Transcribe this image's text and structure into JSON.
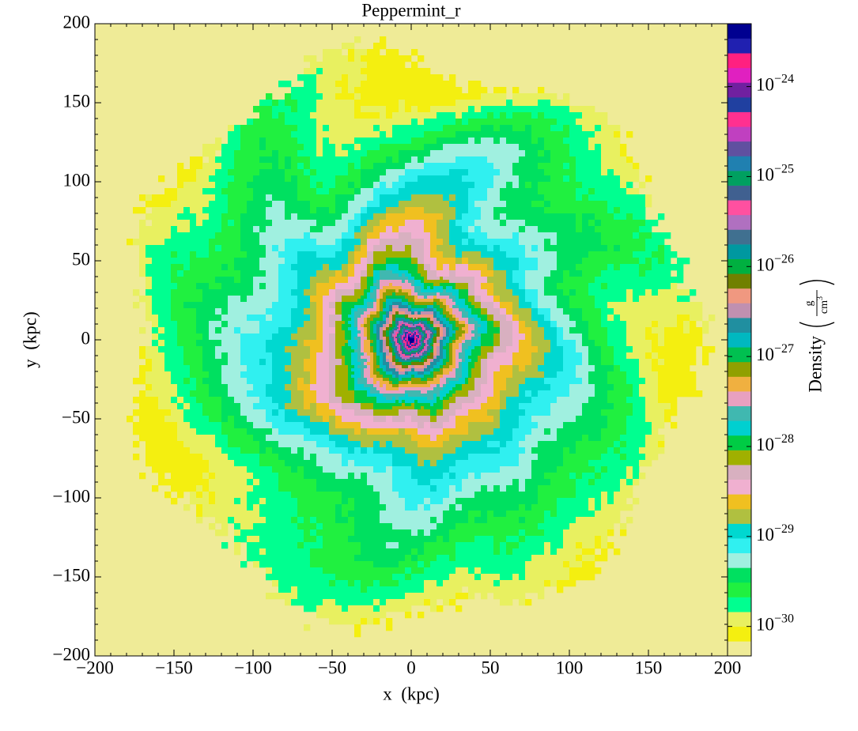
{
  "chart_data": {
    "type": "heatmap",
    "title": "Peppermint_r",
    "xlabel": "x  (kpc)",
    "ylabel": "y  (kpc)",
    "xlim": [
      -200,
      200
    ],
    "ylim": [
      -200,
      200
    ],
    "xticks": [
      {
        "value": -200,
        "label": "−200"
      },
      {
        "value": -150,
        "label": "−150"
      },
      {
        "value": -100,
        "label": "−100"
      },
      {
        "value": -50,
        "label": "−50"
      },
      0,
      50,
      100,
      150,
      200
    ],
    "yticks": [
      {
        "value": -200,
        "label": "−200"
      },
      {
        "value": -150,
        "label": "−150"
      },
      {
        "value": -100,
        "label": "−100"
      },
      {
        "value": -50,
        "label": "−50"
      },
      0,
      50,
      100,
      150,
      200
    ],
    "colorbar": {
      "label": "Density",
      "units": {
        "numerator": "g",
        "denominator": "cm",
        "power": "3"
      },
      "scale": "log",
      "lim": [
        4.7e-31,
        5e-24
      ],
      "ticks": [
        {
          "value": 1e-30,
          "label": "10",
          "exponent": "−30"
        },
        {
          "value": 1e-29,
          "label": "10",
          "exponent": "−29"
        },
        {
          "value": 1e-28,
          "label": "10",
          "exponent": "−28"
        },
        {
          "value": 1e-27,
          "label": "10",
          "exponent": "−27"
        },
        {
          "value": 1e-26,
          "label": "10",
          "exponent": "−26"
        },
        {
          "value": 1e-25,
          "label": "10",
          "exponent": "−25"
        },
        {
          "value": 1e-24,
          "label": "10",
          "exponent": "−24"
        }
      ],
      "colors": [
        "#efeb97",
        "#f4ef10",
        "#e8f060",
        "#00ff90",
        "#20f040",
        "#00e060",
        "#a0f0e0",
        "#30f0f0",
        "#00d8d0",
        "#b0c040",
        "#f0c020",
        "#f0b0d0",
        "#d8b0c0",
        "#a0b000",
        "#00cc44",
        "#00d0d0",
        "#40b8b0",
        "#e8a0c0",
        "#f0b040",
        "#90a000",
        "#00c050",
        "#00b8c0",
        "#208fa0",
        "#c090b0",
        "#f09880",
        "#708000",
        "#00b040",
        "#0098a0",
        "#407090",
        "#b070c0",
        "#ff50a0",
        "#406090",
        "#00a060",
        "#2080b0",
        "#6050a0",
        "#c040c0",
        "#ff3090",
        "#2040a0",
        "#7020a0",
        "#e020c0",
        "#ff2080",
        "#2020b0",
        "#000090"
      ]
    }
  }
}
